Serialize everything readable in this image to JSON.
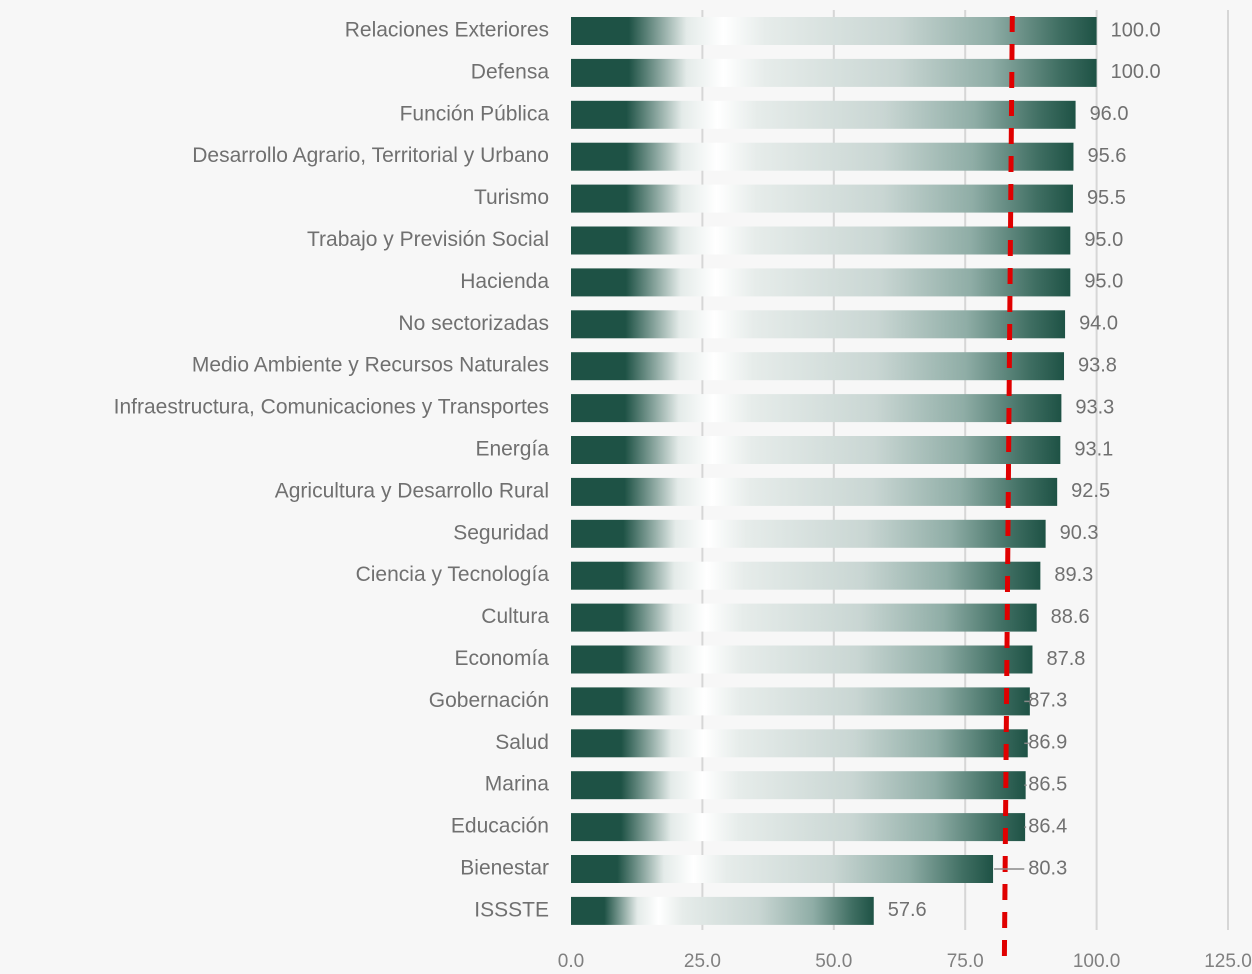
{
  "chart_data": {
    "type": "bar",
    "orientation": "horizontal",
    "title": "",
    "xlabel": "",
    "ylabel": "",
    "categories": [
      "Relaciones Exteriores",
      "Defensa",
      "Función Pública",
      "Desarrollo Agrario, Territorial y Urbano",
      "Turismo",
      "Trabajo y Previsión Social",
      "Hacienda",
      "No sectorizadas",
      "Medio Ambiente y Recursos Naturales",
      "Infraestructura, Comunicaciones y Transportes",
      "Energía",
      "Agricultura y Desarrollo Rural",
      "Seguridad",
      "Ciencia y Tecnología",
      "Cultura",
      "Economía",
      "Gobernación",
      "Salud",
      "Marina",
      "Educación",
      "Bienestar",
      "ISSSTE"
    ],
    "values": [
      100.0,
      100.0,
      96.0,
      95.6,
      95.5,
      95.0,
      95.0,
      94.0,
      93.8,
      93.3,
      93.1,
      92.5,
      90.3,
      89.3,
      88.6,
      87.8,
      87.3,
      86.9,
      86.5,
      86.4,
      80.3,
      57.6
    ],
    "value_labels": [
      "100.0",
      "100.0",
      "96.0",
      "95.6",
      "95.5",
      "95.0",
      "95.0",
      "94.0",
      "93.8",
      "93.3",
      "93.1",
      "92.5",
      "90.3",
      "89.3",
      "88.6",
      "87.8",
      "87.3",
      "86.9",
      "86.5",
      "86.4",
      "80.3",
      "57.6"
    ],
    "xlim": [
      0,
      125
    ],
    "x_ticks": [
      0,
      25,
      50,
      75,
      100,
      125
    ],
    "x_tick_labels": [
      "0.0",
      "25.0",
      "50.0",
      "75.0",
      "100.0",
      "125.0"
    ],
    "reference_line": {
      "value": 83.2,
      "style": "dashed"
    },
    "grid": true,
    "legend": "none",
    "colors": {
      "bar_dark": "#1e5245",
      "bar_mid": "#8fada6",
      "bar_light": "#ffffff",
      "reference_line": "#e00000",
      "grid": "#d6d6d6",
      "text": "#707070"
    }
  }
}
